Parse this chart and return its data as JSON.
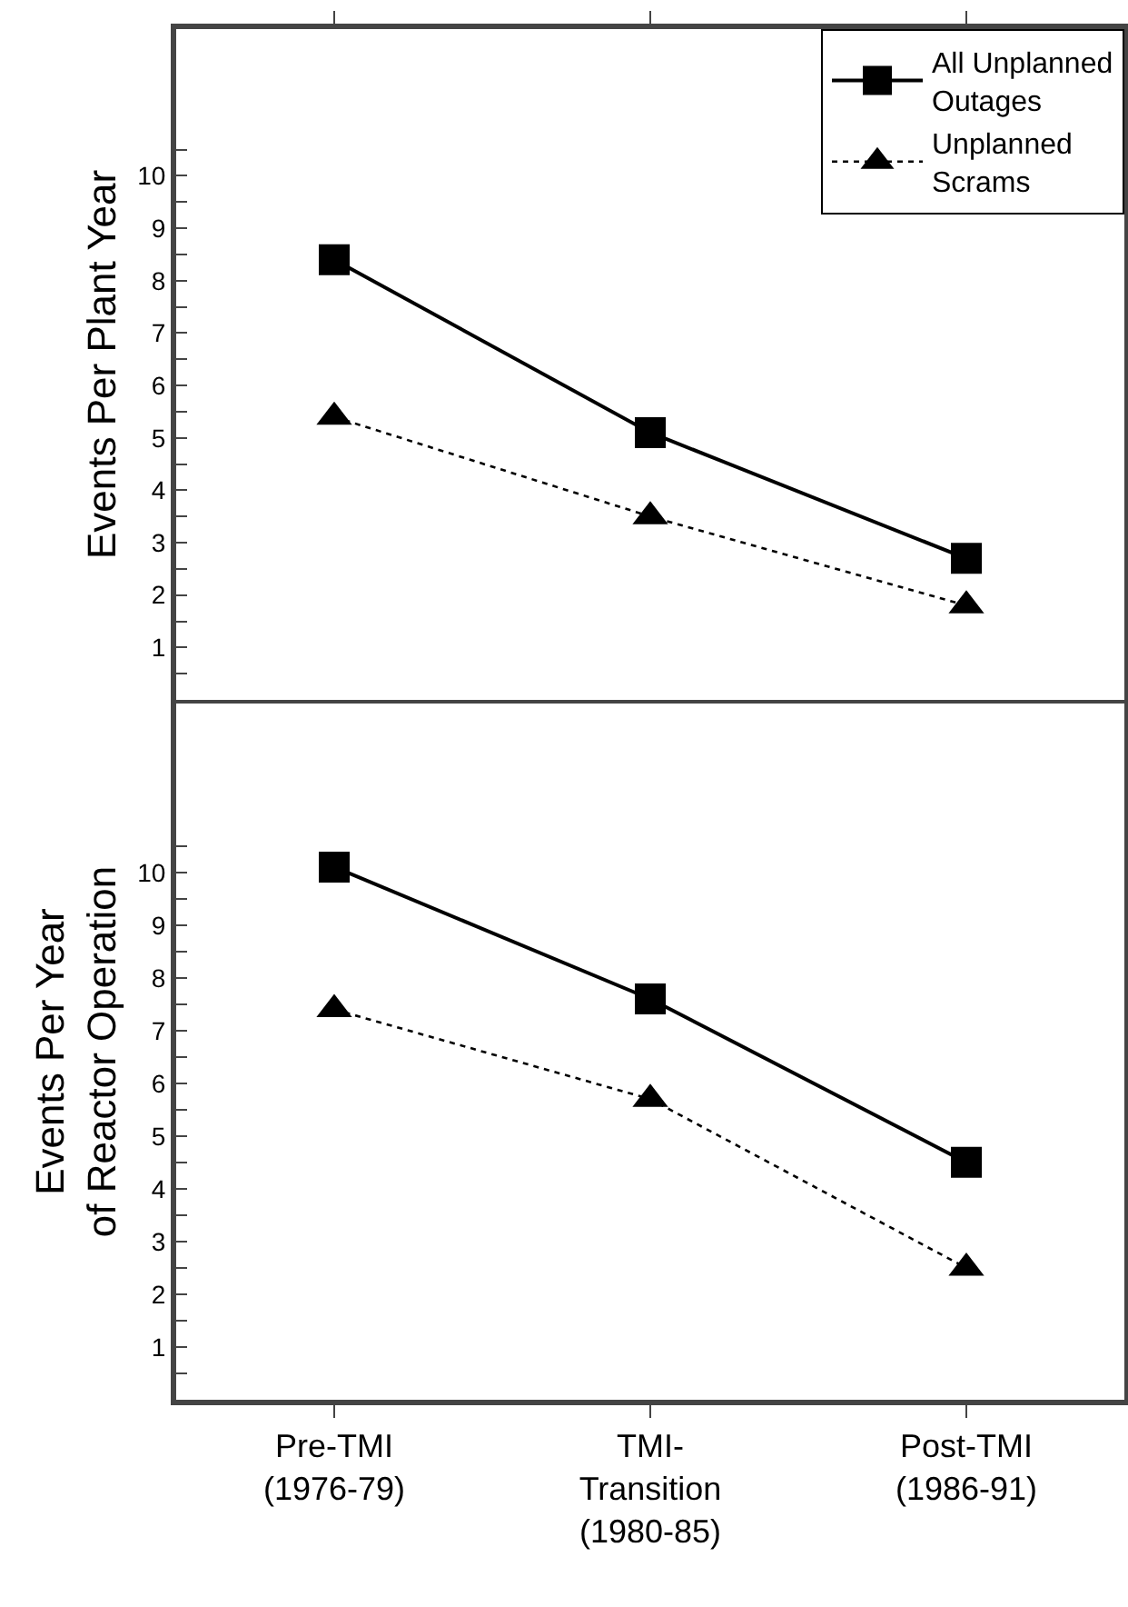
{
  "chart_data": [
    {
      "type": "line",
      "ylabel": "Events Per Plant Year",
      "categories": [
        null,
        null,
        null
      ],
      "series": [
        {
          "name": "All Unplanned Outages",
          "color": "#000000",
          "marker": "square",
          "line_style": "solid",
          "values": [
            8.4,
            5.1,
            2.7
          ]
        },
        {
          "name": "Unplanned Scrams",
          "color": "#000000",
          "marker": "triangle",
          "line_style": "dotted",
          "values": [
            5.4,
            3.5,
            1.8
          ]
        }
      ],
      "ylim": [
        0,
        12.8
      ],
      "yticks": [
        {
          "value": 0.5,
          "label": null
        },
        1,
        {
          "value": 1.5,
          "label": null
        },
        2,
        {
          "value": 2.5,
          "label": null
        },
        3,
        {
          "value": 3.5,
          "label": null
        },
        4,
        {
          "value": 4.5,
          "label": null
        },
        5,
        {
          "value": 5.5,
          "label": null
        },
        6,
        {
          "value": 6.5,
          "label": null
        },
        7,
        {
          "value": 7.5,
          "label": null
        },
        8,
        {
          "value": 8.5,
          "label": null
        },
        9,
        {
          "value": 9.5,
          "label": null
        },
        10,
        {
          "value": 10.5,
          "label": null
        }
      ],
      "grid": false,
      "legend": "top right",
      "tick_labels": "y"
    },
    {
      "type": "line",
      "ylabel": "Events Per Year\nof Reactor Operation",
      "categories": [
        "Pre-TMI\n(1976-79)",
        "TMI-\nTransition\n(1980-85)",
        "Post-TMI\n(1986-91)"
      ],
      "series": [
        {
          "color": "#000000",
          "marker": "square",
          "line_style": "solid",
          "values": [
            10.1,
            7.6,
            4.5
          ]
        },
        {
          "color": "#000000",
          "marker": "triangle",
          "line_style": "dotted",
          "values": [
            7.4,
            5.7,
            2.5
          ]
        }
      ],
      "ylim": [
        0,
        13.2
      ],
      "yticks": [
        {
          "value": 0.5,
          "label": null
        },
        1,
        {
          "value": 1.5,
          "label": null
        },
        2,
        {
          "value": 2.5,
          "label": null
        },
        3,
        {
          "value": 3.5,
          "label": null
        },
        4,
        {
          "value": 4.5,
          "label": null
        },
        5,
        {
          "value": 5.5,
          "label": null
        },
        6,
        {
          "value": 6.5,
          "label": null
        },
        7,
        {
          "value": 7.5,
          "label": null
        },
        8,
        {
          "value": 8.5,
          "label": null
        },
        9,
        {
          "value": 9.5,
          "label": null
        },
        10,
        {
          "value": 10.5,
          "label": null
        }
      ],
      "grid": false,
      "legend": false
    }
  ]
}
